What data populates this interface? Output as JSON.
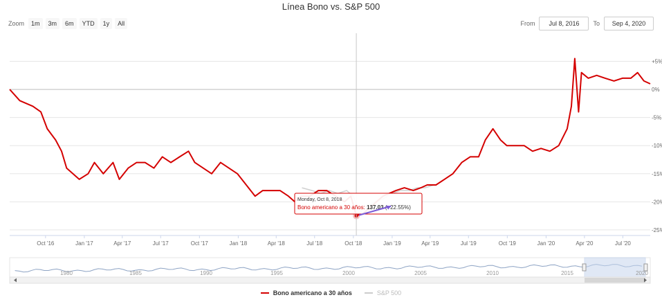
{
  "header": {
    "title": "Línea Bono vs. S&P 500"
  },
  "zoom": {
    "label": "Zoom",
    "buttons": [
      "1m",
      "3m",
      "6m",
      "YTD",
      "1y",
      "All"
    ]
  },
  "range": {
    "from_label": "From",
    "from_value": "Jul 8, 2016",
    "to_label": "To",
    "to_value": "Sep 4, 2020"
  },
  "colors": {
    "bond": "#d40000",
    "sp500": "#d0d0d0",
    "navigator_line": "#8da3c4",
    "navigator_mask": "#c7d7ee",
    "tooltip_arrow": "#7b5bd6"
  },
  "tooltip": {
    "date": "Monday, Oct 8, 2018",
    "series_label": "Bono americano a 30 años:",
    "value": "137.03",
    "change": "(−22.55%)"
  },
  "navigator": {
    "years": [
      "1980",
      "1985",
      "1990",
      "1995",
      "2000",
      "2005",
      "2010",
      "2015",
      "2020"
    ]
  },
  "chart_data": {
    "type": "line",
    "title": "Línea Bono vs. S&P 500",
    "x_range": [
      "2016-07-08",
      "2020-09-04"
    ],
    "x_ticks": [
      "Oct '16",
      "Jan '17",
      "Apr '17",
      "Jul '17",
      "Oct '17",
      "Jan '18",
      "Apr '18",
      "Jul '18",
      "Oct '18",
      "Jan '19",
      "Apr '19",
      "Jul '19",
      "Oct '19",
      "Jan '20",
      "Apr '20",
      "Jul '20"
    ],
    "y_ticks": [
      "+5%",
      "0%",
      "-5%",
      "-10%",
      "-15%",
      "-20%",
      "-25%"
    ],
    "y_tick_values": [
      5,
      0,
      -5,
      -10,
      -15,
      -20,
      -25
    ],
    "ylim": [
      -26,
      10
    ],
    "unit": "%",
    "grid": true,
    "legend_position": "bottom",
    "series": [
      {
        "name": "Bono americano a 30 años",
        "color": "#d40000",
        "x": [
          "2016-07-08",
          "2016-08-01",
          "2016-09-01",
          "2016-09-20",
          "2016-10-05",
          "2016-10-25",
          "2016-11-08",
          "2016-11-20",
          "2016-12-05",
          "2016-12-20",
          "2017-01-10",
          "2017-01-25",
          "2017-02-15",
          "2017-03-10",
          "2017-03-25",
          "2017-04-15",
          "2017-05-05",
          "2017-05-25",
          "2017-06-15",
          "2017-07-05",
          "2017-07-25",
          "2017-08-15",
          "2017-09-05",
          "2017-09-20",
          "2017-10-10",
          "2017-10-30",
          "2017-11-20",
          "2017-12-10",
          "2017-12-30",
          "2018-01-20",
          "2018-02-10",
          "2018-02-28",
          "2018-03-20",
          "2018-04-10",
          "2018-04-30",
          "2018-05-15",
          "2018-05-30",
          "2018-06-20",
          "2018-07-10",
          "2018-07-30",
          "2018-08-20",
          "2018-09-10",
          "2018-09-25",
          "2018-10-08",
          "2018-10-25",
          "2018-11-10",
          "2018-11-25",
          "2018-12-10",
          "2018-12-25",
          "2019-01-10",
          "2019-01-30",
          "2019-02-20",
          "2019-03-10",
          "2019-03-25",
          "2019-04-15",
          "2019-05-05",
          "2019-05-25",
          "2019-06-15",
          "2019-07-05",
          "2019-07-25",
          "2019-08-10",
          "2019-08-28",
          "2019-09-15",
          "2019-09-30",
          "2019-10-20",
          "2019-11-10",
          "2019-11-30",
          "2019-12-20",
          "2020-01-10",
          "2020-01-31",
          "2020-02-20",
          "2020-03-01",
          "2020-03-09",
          "2020-03-18",
          "2020-03-25",
          "2020-04-10",
          "2020-04-30",
          "2020-05-20",
          "2020-06-10",
          "2020-06-30",
          "2020-07-20",
          "2020-08-05",
          "2020-08-20",
          "2020-09-04"
        ],
        "values": [
          0,
          -2,
          -3,
          -4,
          -7,
          -9,
          -11,
          -14,
          -15,
          -16,
          -15,
          -13,
          -15,
          -13,
          -16,
          -14,
          -13,
          -13,
          -14,
          -12,
          -13,
          -12,
          -11,
          -13,
          -14,
          -15,
          -13,
          -14,
          -15,
          -17,
          -19,
          -18,
          -18,
          -18,
          -19,
          -20,
          -19,
          -19,
          -18,
          -18,
          -19,
          -20,
          -19,
          -22.5,
          -22,
          -21,
          -20,
          -19,
          -18.5,
          -18,
          -17.5,
          -18,
          -17.5,
          -17,
          -17,
          -16,
          -15,
          -13,
          -12,
          -12,
          -9,
          -7,
          -9,
          -10,
          -10,
          -10,
          -11,
          -10.5,
          -11,
          -10,
          -7,
          -3,
          5.5,
          -4,
          3,
          2,
          2.5,
          2,
          1.5,
          2,
          2,
          3,
          1.5,
          1
        ]
      },
      {
        "name": "S&P 500",
        "color": "#d0d0d0",
        "x": [
          "2018-06-01",
          "2018-06-25",
          "2018-07-15",
          "2018-08-05",
          "2018-08-25",
          "2018-09-15",
          "2018-10-01",
          "2018-10-15",
          "2018-11-01",
          "2018-11-20",
          "2018-12-10",
          "2019-01-01",
          "2019-01-20",
          "2019-02-10",
          "2019-03-01",
          "2019-03-20",
          "2019-04-10"
        ],
        "values": [
          -17.5,
          -18,
          -18.5,
          -18,
          -18.5,
          -18,
          -19,
          -22,
          -21,
          -20,
          -19.5,
          -18.5,
          -18,
          -18,
          -17.5,
          -17.5,
          -17
        ]
      }
    ]
  },
  "legend": {
    "bond": "Bono americano a 30 años",
    "sp500": "S&P 500"
  }
}
